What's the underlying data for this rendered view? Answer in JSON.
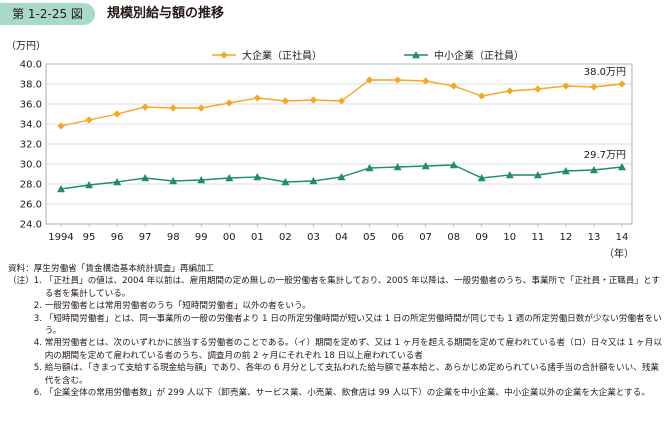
{
  "figure": {
    "number": "第 1-2-25 図",
    "title": "規模別給与額の推移"
  },
  "chart_data": {
    "type": "line",
    "title": "",
    "ylabel": "（万円）",
    "xlabel": "（年）",
    "ylim": [
      24.0,
      40.0
    ],
    "yticks": [
      "24.0",
      "26.0",
      "28.0",
      "30.0",
      "32.0",
      "34.0",
      "36.0",
      "38.0",
      "40.0"
    ],
    "categories": [
      "1994",
      "95",
      "96",
      "97",
      "98",
      "99",
      "00",
      "01",
      "02",
      "03",
      "04",
      "05",
      "06",
      "07",
      "08",
      "09",
      "10",
      "11",
      "12",
      "13",
      "14"
    ],
    "grid": true,
    "legend_position": "top",
    "series": [
      {
        "name": "大企業（正社員）",
        "color": "#f5a623",
        "marker": "diamond",
        "values": [
          33.8,
          34.4,
          35.0,
          35.7,
          35.6,
          35.6,
          36.1,
          36.6,
          36.3,
          36.4,
          36.3,
          38.4,
          38.4,
          38.3,
          37.8,
          36.8,
          37.3,
          37.5,
          37.8,
          37.7,
          38.0
        ],
        "end_label": "38.0万円"
      },
      {
        "name": "中小企業（正社員）",
        "color": "#1e8c72",
        "marker": "triangle",
        "values": [
          27.5,
          27.9,
          28.2,
          28.6,
          28.3,
          28.4,
          28.6,
          28.7,
          28.2,
          28.3,
          28.7,
          29.6,
          29.7,
          29.8,
          29.9,
          28.6,
          28.9,
          28.9,
          29.3,
          29.4,
          29.7
        ],
        "end_label": "29.7万円"
      }
    ]
  },
  "notes": {
    "source": "資料：厚生労働省「賃金構造基本統計調査」再編加工",
    "items": [
      {
        "lead": "（注）1. ",
        "text": "「正社員」の値は、2004 年以前は、雇用期間の定め無しの一般労働者を集計しており、2005 年以降は、一般労働者のうち、事業所で「正社員・正職員」とする者を集計している。"
      },
      {
        "lead": "　　　2. ",
        "text": "一般労働者とは常用労働者のうち「短時間労働者」以外の者をいう。"
      },
      {
        "lead": "　　　3. ",
        "text": "「短時間労働者」とは、同一事業所の一般の労働者より 1 日の所定労働時間が短い又は 1 日の所定労働時間が同じでも 1 週の所定労働日数が少ない労働者をいう。"
      },
      {
        "lead": "　　　4. ",
        "text": "常用労働者とは、次のいずれかに該当する労働者のことである。（イ）期間を定めず、又は 1 ヶ月を超える期間を定めて雇われている者（ロ）日々又は 1 ヶ月以内の期間を定めて雇われている者のうち、調査月の前 2 ヶ月にそれぞれ 18 日以上雇われている者"
      },
      {
        "lead": "　　　5. ",
        "text": "給与額は、「きまって支給する現金給与額」であり、各年の 6 月分として支払われた給与額で基本給と、あらかじめ定められている諸手当の合計額をいい、残業代を含む。"
      },
      {
        "lead": "　　　6. ",
        "text": "「企業全体の常用労働者数」が 299 人以下（卸売業、サービス業、小売業、飲食店は 99 人以下）の企業を中小企業、中小企業以外の企業を大企業とする。"
      }
    ]
  }
}
